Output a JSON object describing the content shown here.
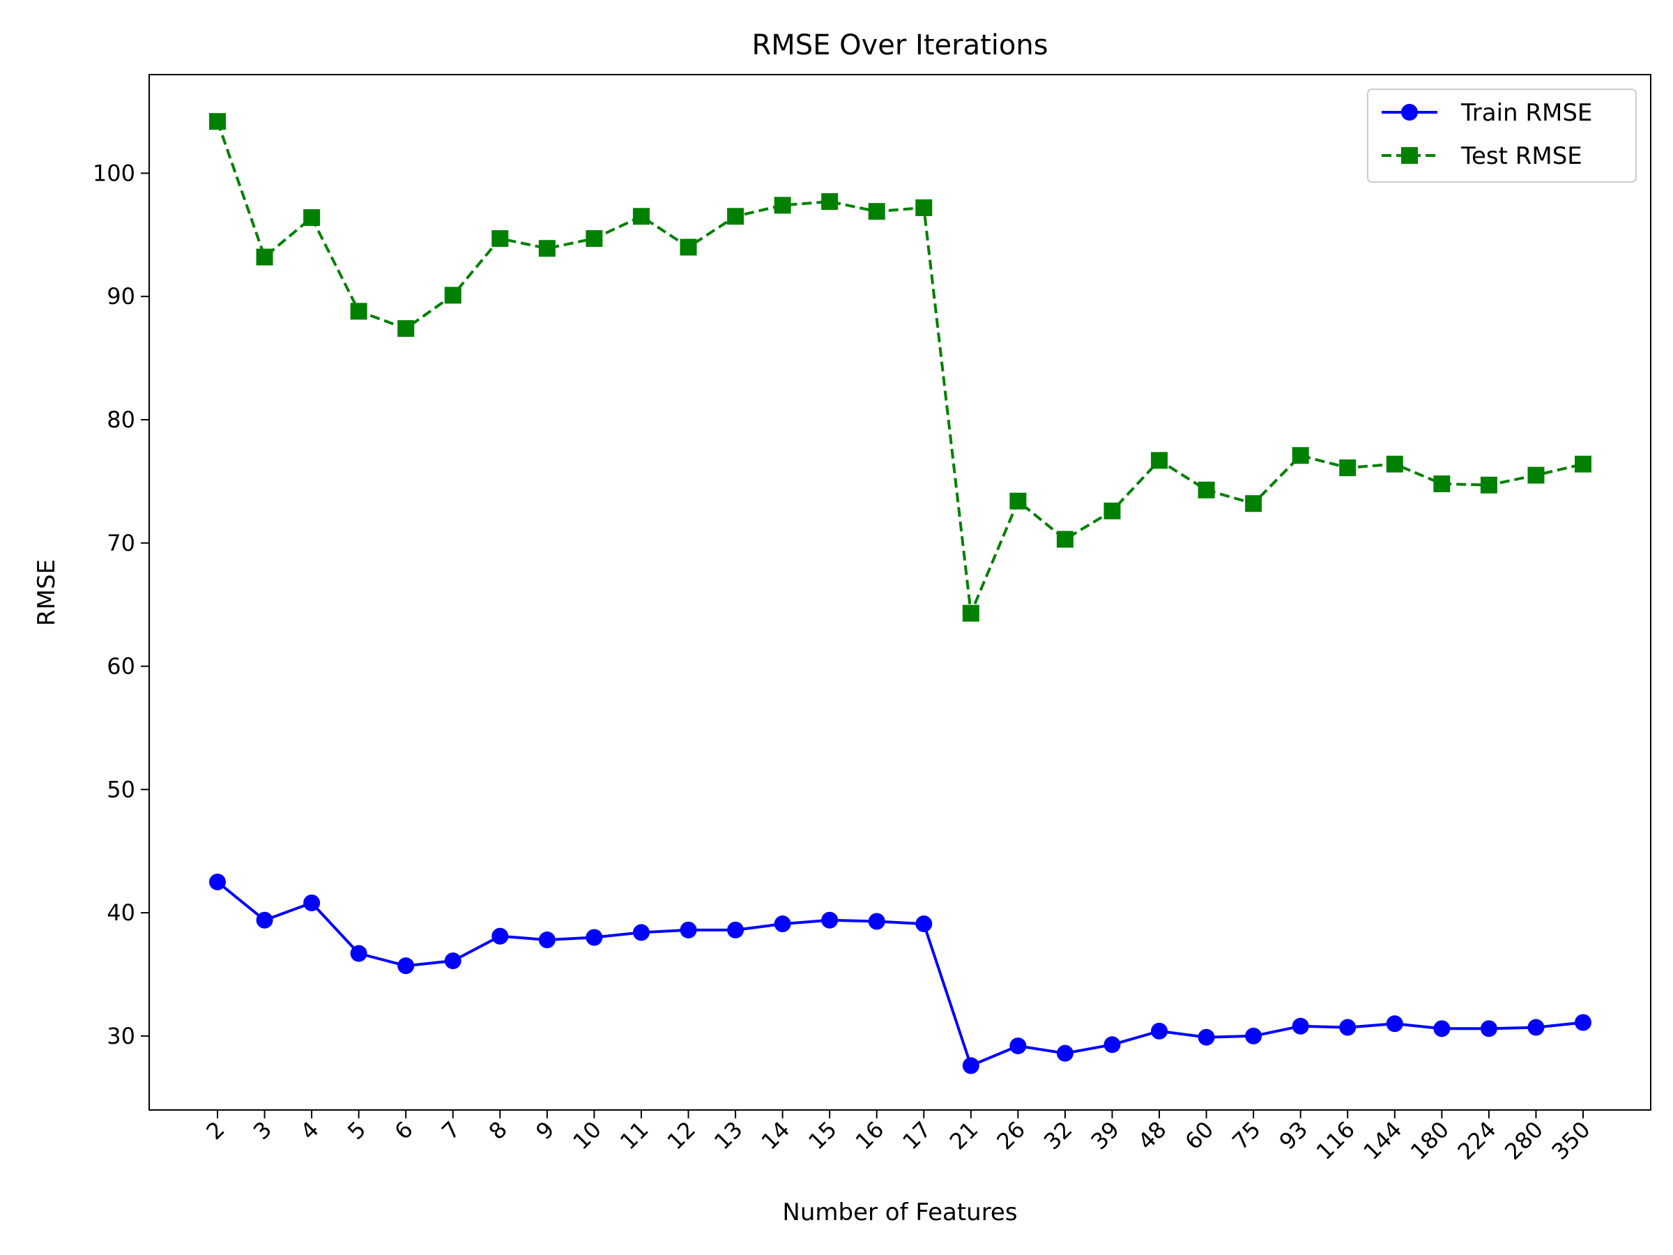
{
  "chart_data": {
    "type": "line",
    "title": "RMSE Over Iterations",
    "xlabel": "Number of Features",
    "ylabel": "RMSE",
    "categories": [
      "2",
      "3",
      "4",
      "5",
      "6",
      "7",
      "8",
      "9",
      "10",
      "11",
      "12",
      "13",
      "14",
      "15",
      "16",
      "17",
      "21",
      "26",
      "32",
      "39",
      "48",
      "60",
      "75",
      "93",
      "116",
      "144",
      "180",
      "224",
      "280",
      "350"
    ],
    "ylim": [
      24,
      108
    ],
    "yticks": [
      30,
      40,
      50,
      60,
      70,
      80,
      90,
      100
    ],
    "grid": false,
    "legend_position": "top-right",
    "series": [
      {
        "name": "Train RMSE",
        "color": "#0000ff",
        "line_style": "solid",
        "marker": "circle",
        "values": [
          42.5,
          39.4,
          40.8,
          36.7,
          35.7,
          36.1,
          38.1,
          37.8,
          38.0,
          38.4,
          38.6,
          38.6,
          39.1,
          39.4,
          39.3,
          39.1,
          27.6,
          29.2,
          28.6,
          29.3,
          30.4,
          29.9,
          30.0,
          30.8,
          30.7,
          31.0,
          30.6,
          30.6,
          30.7,
          31.1
        ]
      },
      {
        "name": "Test RMSE",
        "color": "#008000",
        "line_style": "dashed",
        "marker": "square",
        "values": [
          104.2,
          93.2,
          96.4,
          88.8,
          87.4,
          90.1,
          94.7,
          93.9,
          94.7,
          96.5,
          94.0,
          96.5,
          97.4,
          97.7,
          96.9,
          97.2,
          64.3,
          73.4,
          70.3,
          72.6,
          76.7,
          74.3,
          73.2,
          77.1,
          76.1,
          76.4,
          74.8,
          74.7,
          75.5,
          76.4
        ]
      }
    ]
  }
}
